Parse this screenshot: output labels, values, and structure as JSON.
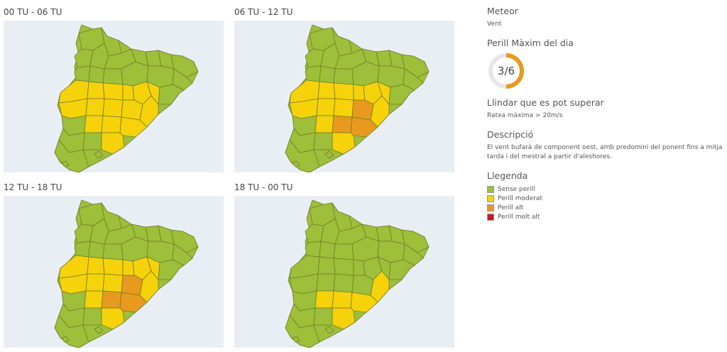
{
  "colors": {
    "none": "#9dbf3a",
    "moderate": "#f5d20a",
    "high": "#e89a1e",
    "very_high": "#d2142b",
    "ocean": "#e9eef5",
    "gauge_track": "#e6e6e6",
    "gauge_fill": "#e89a1e"
  },
  "maps": [
    {
      "title": "00 TU - 06 TU",
      "orange_regions": 0,
      "yellow_mode": "band"
    },
    {
      "title": "06 TU - 12 TU",
      "orange_regions": 3,
      "yellow_mode": "band"
    },
    {
      "title": "12 TU - 18 TU",
      "orange_regions": 3,
      "yellow_mode": "band"
    },
    {
      "title": "18 TU - 00 TU",
      "orange_regions": 0,
      "yellow_mode": "south"
    }
  ],
  "sidebar": {
    "meteor_heading": "Meteor",
    "meteor_value": "Vent",
    "danger_heading": "Perill Màxim del dia",
    "danger_level": 3,
    "danger_max": 6,
    "danger_text": "3/6",
    "threshold_heading": "Llindar que es pot superar",
    "threshold_value": "Ratxa màxima > 20m/s",
    "description_heading": "Descripció",
    "description_text": "El vent bufarà de component oest, amb predomini del ponent fins a mitja tarda i del mestral a partir d'aleshores.",
    "legend_heading": "Llegenda",
    "legend": [
      {
        "label": "Sense perill",
        "color": "#9dbf3a"
      },
      {
        "label": "Perill moderat",
        "color": "#f5d20a"
      },
      {
        "label": "Perill alt",
        "color": "#e89a1e"
      },
      {
        "label": "Perill molt alt",
        "color": "#d2142b"
      }
    ]
  }
}
